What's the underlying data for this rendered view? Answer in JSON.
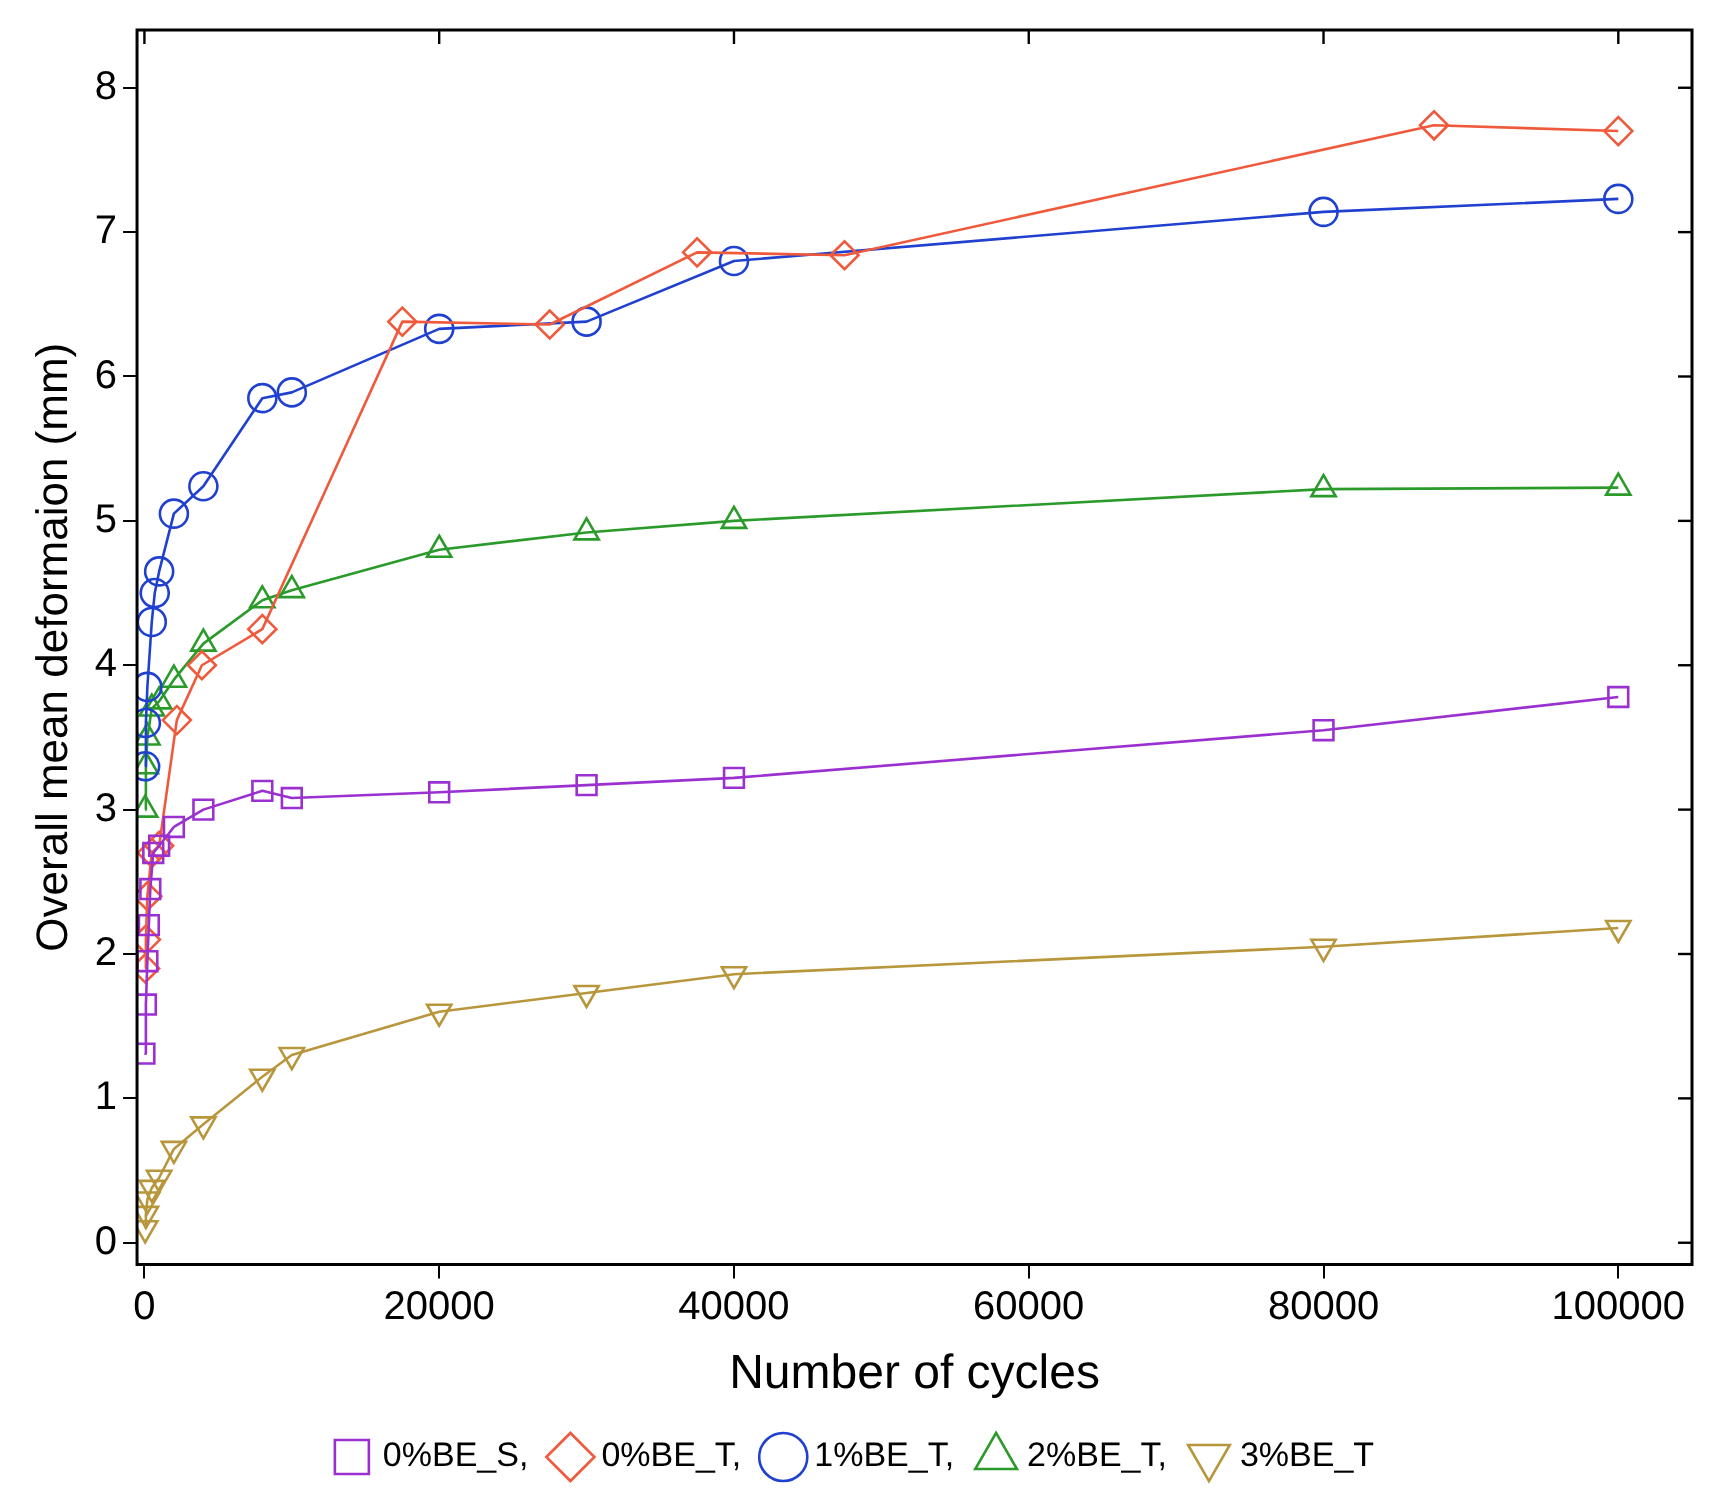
{
  "chart_data": {
    "type": "line",
    "xlabel": "Number of cycles",
    "ylabel": "Overall mean deformaion (mm)",
    "xlim": [
      -500,
      105000
    ],
    "ylim": [
      -0.15,
      8.4
    ],
    "xticks": [
      0,
      20000,
      40000,
      60000,
      80000,
      100000
    ],
    "yticks": [
      0,
      1,
      2,
      3,
      4,
      5,
      6,
      7,
      8
    ],
    "grid": false,
    "legend": "bottom",
    "line_style": "solid",
    "series": [
      {
        "name": "0%BE_S,",
        "color": "#9b30d0",
        "marker": "square",
        "x": [
          0,
          100,
          200,
          300,
          400,
          600,
          1000,
          2000,
          4000,
          8000,
          10000,
          20000,
          30000,
          40000,
          80000,
          100000
        ],
        "values": [
          1.31,
          1.65,
          1.95,
          2.2,
          2.45,
          2.7,
          2.75,
          2.88,
          3.0,
          3.13,
          3.08,
          3.12,
          3.17,
          3.22,
          3.55,
          3.78
        ]
      },
      {
        "name": "0%BE_T,",
        "color": "#f05a3c",
        "marker": "diamond",
        "x": [
          50,
          100,
          200,
          500,
          1000,
          2200,
          3900,
          8000,
          17500,
          27500,
          37500,
          47500,
          87500,
          100000
        ],
        "values": [
          1.9,
          2.1,
          2.4,
          2.7,
          2.75,
          3.62,
          4.0,
          4.25,
          6.38,
          6.36,
          6.86,
          6.84,
          7.74,
          7.7
        ]
      },
      {
        "name": "1%BE_T,",
        "color": "#2040d0",
        "marker": "circle",
        "x": [
          50,
          100,
          200,
          500,
          700,
          1000,
          2000,
          4000,
          8000,
          10000,
          20000,
          30000,
          40000,
          80000,
          100000
        ],
        "values": [
          3.3,
          3.6,
          3.85,
          4.3,
          4.5,
          4.65,
          5.05,
          5.24,
          5.85,
          5.89,
          6.33,
          6.38,
          6.8,
          7.14,
          7.23
        ]
      },
      {
        "name": "2%BE_T,",
        "color": "#2a9a2a",
        "marker": "triangle",
        "x": [
          50,
          100,
          200,
          500,
          1000,
          2000,
          4000,
          8000,
          10000,
          20000,
          30000,
          40000,
          80000,
          100000
        ],
        "values": [
          3.0,
          3.3,
          3.5,
          3.7,
          3.75,
          3.9,
          4.15,
          4.45,
          4.52,
          4.8,
          4.92,
          5.0,
          5.22,
          5.23
        ]
      },
      {
        "name": "3%BE_T",
        "color": "#b8963c",
        "marker": "triangle-down",
        "x": [
          50,
          100,
          200,
          500,
          1000,
          2000,
          4000,
          8000,
          10000,
          20000,
          30000,
          40000,
          80000,
          100000
        ],
        "values": [
          0.1,
          0.2,
          0.3,
          0.38,
          0.45,
          0.65,
          0.82,
          1.15,
          1.3,
          1.6,
          1.73,
          1.86,
          2.05,
          2.18
        ]
      }
    ]
  }
}
